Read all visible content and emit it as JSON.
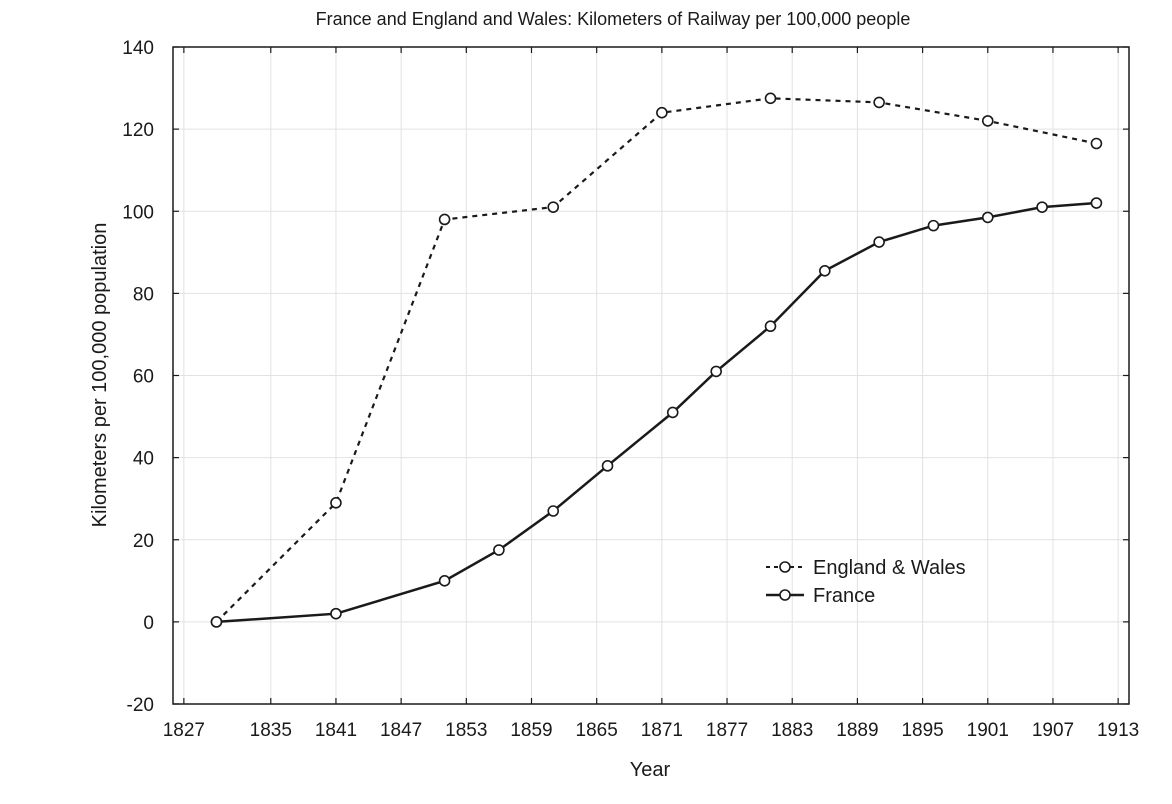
{
  "chart_data": {
    "type": "line",
    "title": "France and England and Wales: Kilometers of Railway per 100,000 people",
    "xlabel": "Year",
    "ylabel": "Kilometers per 100,000 population",
    "xlim": [
      1826,
      1914
    ],
    "ylim": [
      -20,
      140
    ],
    "xticks": [
      1827,
      1835,
      1841,
      1847,
      1853,
      1859,
      1865,
      1871,
      1877,
      1883,
      1889,
      1895,
      1901,
      1907,
      1913
    ],
    "xtick_labels": [
      "1827",
      "1835",
      "1841",
      "1847",
      "1853",
      "1859",
      "1865",
      "1871",
      "1877",
      "1883",
      "1889",
      "1895",
      "1901",
      "1907",
      "1913"
    ],
    "yticks": [
      -20,
      0,
      20,
      40,
      60,
      80,
      100,
      120,
      140
    ],
    "ytick_labels": [
      "-20",
      "0",
      "20",
      "40",
      "60",
      "80",
      "100",
      "120",
      "140"
    ],
    "grid": true,
    "legend_position": "center-right",
    "series": [
      {
        "name": "England & Wales",
        "style": "dashed",
        "color": "#1a1a1a",
        "x": [
          1830,
          1841,
          1851,
          1861,
          1871,
          1881,
          1891,
          1901,
          1911
        ],
        "y": [
          0,
          29,
          98,
          101,
          124,
          127.5,
          126.5,
          122,
          116.5
        ]
      },
      {
        "name": "France",
        "style": "solid",
        "color": "#1a1a1a",
        "x": [
          1830,
          1841,
          1851,
          1856,
          1861,
          1866,
          1872,
          1876,
          1881,
          1886,
          1891,
          1896,
          1901,
          1906,
          1911
        ],
        "y": [
          0,
          2,
          10,
          17.5,
          27,
          38,
          51,
          61,
          72,
          85.5,
          92.5,
          96.5,
          98.5,
          101,
          102
        ]
      }
    ]
  }
}
